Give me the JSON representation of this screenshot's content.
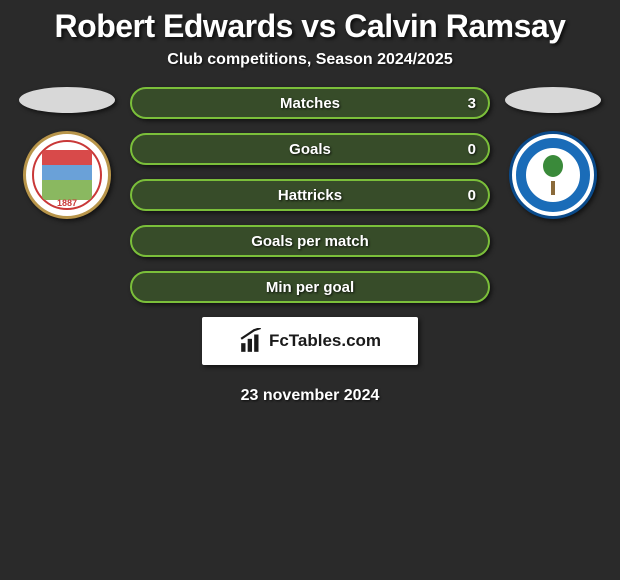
{
  "title": {
    "player1": "Robert Edwards",
    "vs": "vs",
    "player2": "Calvin Ramsay"
  },
  "subtitle": "Club competitions, Season 2024/2025",
  "stats": [
    {
      "label": "Matches",
      "value_right": "3",
      "border_color": "#7bbf3a",
      "bg_color": "rgba(80,140,40,0.35)"
    },
    {
      "label": "Goals",
      "value_right": "0",
      "border_color": "#7bbf3a",
      "bg_color": "rgba(80,140,40,0.35)"
    },
    {
      "label": "Hattricks",
      "value_right": "0",
      "border_color": "#7bbf3a",
      "bg_color": "rgba(80,140,40,0.35)"
    },
    {
      "label": "Goals per match",
      "value_right": "",
      "border_color": "#7bbf3a",
      "bg_color": "rgba(80,140,40,0.35)"
    },
    {
      "label": "Min per goal",
      "value_right": "",
      "border_color": "#7bbf3a",
      "bg_color": "rgba(80,140,40,0.35)"
    }
  ],
  "logo_text": "FcTables.com",
  "date": "23 november 2024",
  "clubs": {
    "left": {
      "name": "Barnsley FC",
      "year": "1887"
    },
    "right": {
      "name": "Wigan Athletic"
    }
  }
}
